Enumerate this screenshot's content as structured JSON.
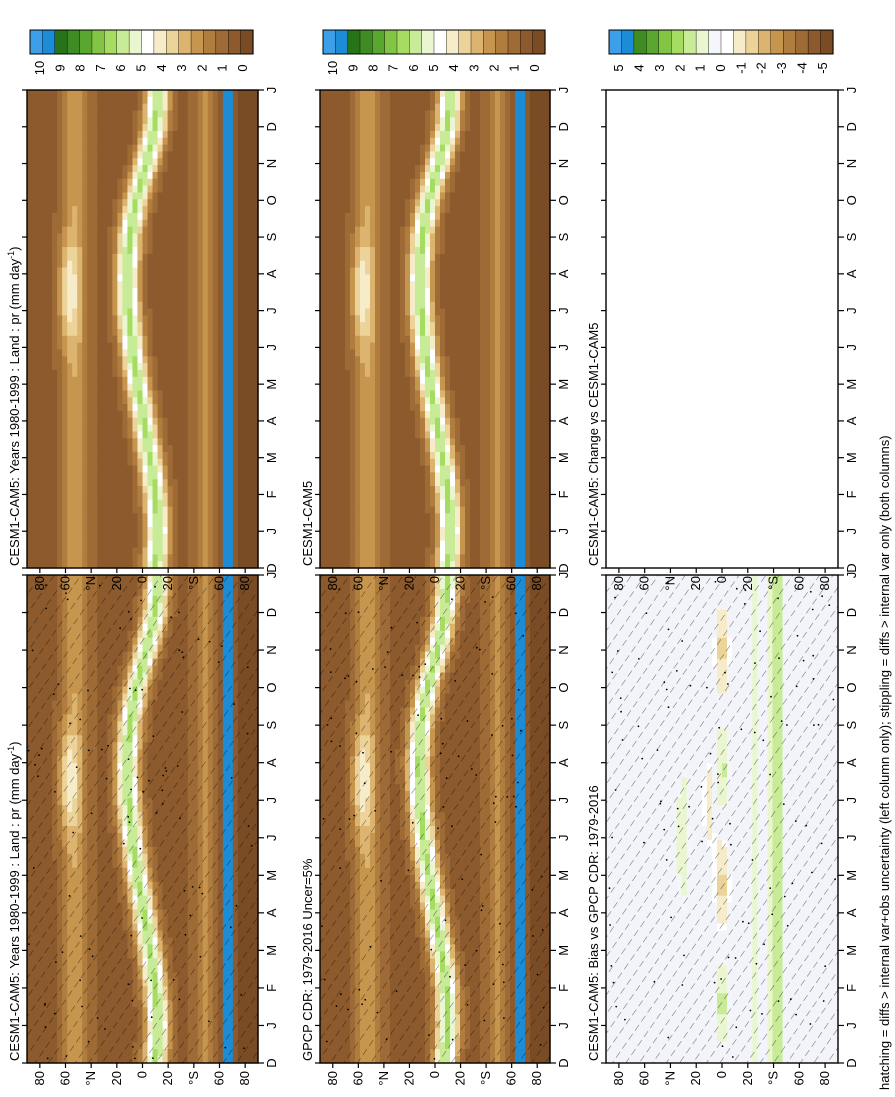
{
  "footer_note": "hatching = diffs > internal var+obs uncertainty (left column only); stippling = diffs > internal var only (both columns)",
  "palette": {
    "precip": [
      "#7a4c25",
      "#8c5a2d",
      "#9e6a35",
      "#b07d3f",
      "#c6954e",
      "#dcb470",
      "#ecd39a",
      "#f6ecc9",
      "#ffffff",
      "#eaf6cf",
      "#c8eb97",
      "#a6dc62",
      "#82c443",
      "#5aa72f",
      "#3f8c24",
      "#277319",
      "#1d8cd6",
      "#3d9fe8"
    ],
    "diff": [
      "#7a4c25",
      "#8c5a2d",
      "#9e6a35",
      "#b07d3f",
      "#c6954e",
      "#dcb470",
      "#ecd39a",
      "#f6ecc9",
      "#ffffff",
      "#f4f6fb",
      "#eaf6cf",
      "#c8eb97",
      "#a6dc62",
      "#82c443",
      "#5aa72f",
      "#3f8c24",
      "#1d8cd6",
      "#3d9fe8"
    ],
    "empty_panel": "#ffffff",
    "bias_background": "#f2f4fa"
  },
  "chart_data": [
    {
      "id": "panel_left_top",
      "type": "heatmap",
      "title": "CESM1-CAM5: Years 1980-1999 : Land : pr (mm day",
      "title_sup": "-1",
      "title_tail": ")",
      "months": [
        "D",
        "J",
        "F",
        "M",
        "A",
        "M",
        "J",
        "J",
        "A",
        "S",
        "O",
        "N",
        "D",
        "J"
      ],
      "lat_ticks": [
        "80",
        "60",
        "°N",
        "20",
        "0",
        "20",
        "°S",
        "60",
        "80"
      ],
      "colorbar_ticks": [
        "10",
        "9",
        "8",
        "7",
        "6",
        "5",
        "4",
        "3",
        "2",
        "1",
        "0"
      ],
      "colorbar_range": [
        0,
        10
      ],
      "field": "precip",
      "itcz_lat_by_month": [
        -10,
        -12,
        -10,
        -6,
        -1,
        4,
        8,
        11,
        12,
        10,
        5,
        -3,
        -10,
        -12
      ],
      "hatching": true,
      "stippling": true
    },
    {
      "id": "panel_right_top",
      "type": "heatmap",
      "title": "CESM1-CAM5: Years 1980-1999 : Land : pr (mm day",
      "title_sup": "-1",
      "title_tail": ")",
      "months": [
        "D",
        "J",
        "F",
        "M",
        "A",
        "M",
        "J",
        "J",
        "A",
        "S",
        "O",
        "N",
        "D",
        "J"
      ],
      "lat_ticks": [
        "80",
        "60",
        "°N",
        "20",
        "0",
        "20",
        "°S",
        "60",
        "80"
      ],
      "colorbar_ticks": [
        "10",
        "9",
        "8",
        "7",
        "6",
        "5",
        "4",
        "3",
        "2",
        "1",
        "0"
      ],
      "colorbar_range": [
        0,
        10
      ],
      "field": "precip",
      "itcz_lat_by_month": [
        -10,
        -12,
        -10,
        -6,
        -1,
        4,
        8,
        11,
        12,
        10,
        5,
        -3,
        -10,
        -12
      ],
      "hatching": false,
      "stippling": false
    },
    {
      "id": "panel_left_middle",
      "type": "heatmap",
      "title": "GPCP CDR: 1979-2016 Uncer=5%",
      "months": [
        "D",
        "J",
        "F",
        "M",
        "A",
        "M",
        "J",
        "J",
        "A",
        "S",
        "O",
        "N",
        "D",
        "J"
      ],
      "lat_ticks": [
        "80",
        "60",
        "°N",
        "20",
        "0",
        "20",
        "°S",
        "60",
        "80"
      ],
      "colorbar_ticks": [
        "10",
        "9",
        "8",
        "7",
        "6",
        "5",
        "4",
        "3",
        "2",
        "1",
        "0"
      ],
      "colorbar_range": [
        0,
        10
      ],
      "field": "precip",
      "itcz_lat_by_month": [
        -8,
        -10,
        -9,
        -5,
        0,
        5,
        9,
        12,
        13,
        11,
        6,
        -2,
        -8,
        -10
      ],
      "hatching": true,
      "stippling": true
    },
    {
      "id": "panel_right_middle",
      "type": "heatmap",
      "title": "CESM1-CAM5",
      "months": [
        "D",
        "J",
        "F",
        "M",
        "A",
        "M",
        "J",
        "J",
        "A",
        "S",
        "O",
        "N",
        "D",
        "J"
      ],
      "lat_ticks": [
        "80",
        "60",
        "°N",
        "20",
        "0",
        "20",
        "°S",
        "60",
        "80"
      ],
      "colorbar_ticks": [
        "10",
        "9",
        "8",
        "7",
        "6",
        "5",
        "4",
        "3",
        "2",
        "1",
        "0"
      ],
      "colorbar_range": [
        0,
        10
      ],
      "field": "precip",
      "itcz_lat_by_month": [
        -10,
        -12,
        -10,
        -6,
        -1,
        4,
        8,
        11,
        12,
        10,
        5,
        -3,
        -10,
        -12
      ],
      "hatching": false,
      "stippling": false
    },
    {
      "id": "panel_left_bottom",
      "type": "heatmap",
      "title": "CESM1-CAM5: Bias vs GPCP CDR: 1979-2016",
      "months": [
        "D",
        "J",
        "F",
        "M",
        "A",
        "M",
        "J",
        "J",
        "A",
        "S",
        "O",
        "N",
        "D",
        "J"
      ],
      "lat_ticks": [
        "80",
        "60",
        "°N",
        "20",
        "0",
        "20",
        "°S",
        "60",
        "80"
      ],
      "colorbar_ticks": [
        "5",
        "4",
        "3",
        "2",
        "1",
        "0",
        "-1",
        "-2",
        "-3",
        "-4",
        "-5"
      ],
      "colorbar_range": [
        -5,
        5
      ],
      "field": "diff",
      "hatching": true,
      "stippling": true
    },
    {
      "id": "panel_right_bottom",
      "type": "heatmap",
      "title": "CESM1-CAM5: Change vs CESM1-CAM5",
      "months": [
        "D",
        "J",
        "F",
        "M",
        "A",
        "M",
        "J",
        "J",
        "A",
        "S",
        "O",
        "N",
        "D",
        "J"
      ],
      "lat_ticks": [
        "80",
        "60",
        "°N",
        "20",
        "0",
        "20",
        "°S",
        "60",
        "80"
      ],
      "colorbar_ticks": [
        "5",
        "4",
        "3",
        "2",
        "1",
        "0",
        "-1",
        "-2",
        "-3",
        "-4",
        "-5"
      ],
      "colorbar_range": [
        -5,
        5
      ],
      "field": "empty",
      "hatching": false,
      "stippling": false
    }
  ]
}
